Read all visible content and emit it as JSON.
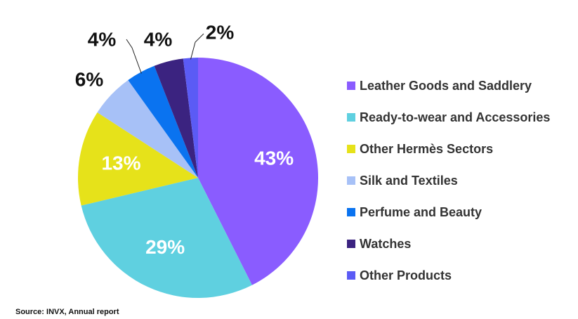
{
  "chart_data": {
    "type": "pie",
    "categories": [
      "Leather Goods and Saddlery",
      "Ready-to-wear and Accessories",
      "Other Hermès Sectors",
      "Silk and Textiles",
      "Perfume and Beauty",
      "Watches",
      "Other Products"
    ],
    "values": [
      43,
      29,
      13,
      6,
      4,
      4,
      2
    ],
    "value_labels": [
      "43%",
      "29%",
      "13%",
      "6%",
      "4%",
      "4%",
      "2%"
    ],
    "colors": [
      "#8a5cff",
      "#5fd0e0",
      "#e6e21a",
      "#a7c1f7",
      "#0a73f0",
      "#3b2380",
      "#5b5bf5"
    ],
    "source": "Source: INVX, Annual report"
  }
}
